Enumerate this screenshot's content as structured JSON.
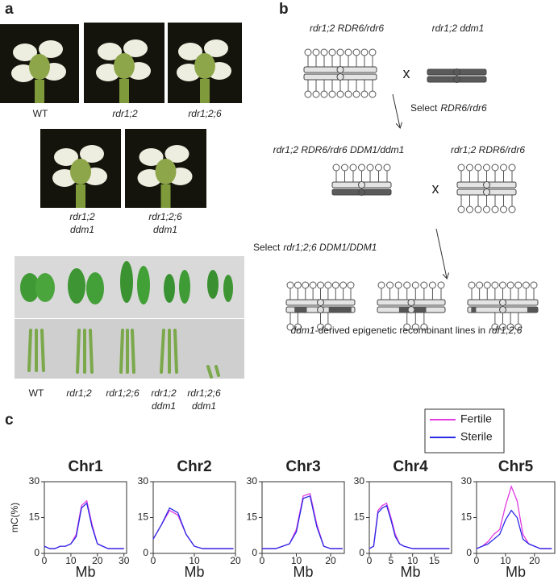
{
  "panel_a": {
    "label": "a",
    "flowers": [
      "WT",
      "rdr1;2",
      "rdr1;2;6"
    ],
    "flowers_ddm1": [
      [
        "rdr1;2",
        "ddm1"
      ],
      [
        "rdr1;2;6",
        "ddm1"
      ]
    ],
    "leaves": [
      [
        "WT"
      ],
      [
        "rdr1;2"
      ],
      [
        "rdr1;2;6"
      ],
      [
        "rdr1;2",
        "ddm1"
      ],
      [
        "rdr1;2;6",
        "ddm1"
      ]
    ]
  },
  "panel_b": {
    "label": "b",
    "parents1": [
      "rdr1;2 RDR6/rdr6",
      "rdr1;2 ddm1"
    ],
    "cross": "x",
    "select1": [
      "Select",
      "RDR6/rdr6"
    ],
    "parents2": [
      "rdr1;2 RDR6/rdr6 DDM1/ddm1",
      "rdr1;2 RDR6/rdr6"
    ],
    "select2": [
      "Select",
      "rdr1;2;6 DDM1/DDM1"
    ],
    "caption": [
      "ddm1",
      "-derived epigenetic recombinant lines in",
      "rdr1;2;6"
    ]
  },
  "panel_c": {
    "label": "c"
  },
  "chart_data": [
    {
      "type": "line",
      "title": "Chr1",
      "y_label": "mC(%)",
      "x_label": "Mb",
      "xlim": [
        0,
        31
      ],
      "xticks": [
        0,
        10,
        20,
        30
      ],
      "ylim": [
        0,
        30
      ],
      "yticks": [
        0,
        15,
        30
      ],
      "x": [
        0,
        2,
        4,
        6,
        8,
        10,
        12,
        14,
        16,
        18,
        20,
        22,
        24,
        26,
        28,
        30
      ],
      "series": [
        {
          "name": "Fertile",
          "color": "#e23be2",
          "values": [
            3,
            2,
            2,
            3,
            3,
            4,
            8,
            20,
            22,
            12,
            4,
            3,
            2,
            2,
            2,
            2
          ]
        },
        {
          "name": "Sterile",
          "color": "#2a2ae6",
          "values": [
            3,
            2,
            2,
            3,
            3,
            4,
            7,
            19,
            21,
            11,
            4,
            3,
            2,
            2,
            2,
            2
          ]
        }
      ]
    },
    {
      "type": "line",
      "title": "Chr2",
      "x_label": "Mb",
      "xlim": [
        0,
        20
      ],
      "xticks": [
        0,
        10,
        20
      ],
      "ylim": [
        0,
        30
      ],
      "yticks": [
        0,
        15,
        30
      ],
      "x": [
        0,
        2,
        4,
        6,
        8,
        10,
        12,
        14,
        16,
        18,
        19.5
      ],
      "series": [
        {
          "color": "#e23be2",
          "values": [
            6,
            12,
            18,
            16,
            8,
            3,
            2,
            2,
            2,
            2,
            2
          ]
        },
        {
          "color": "#2a2ae6",
          "values": [
            6,
            12,
            19,
            17,
            8,
            3,
            2,
            2,
            2,
            2,
            2
          ]
        }
      ]
    },
    {
      "type": "line",
      "title": "Chr3",
      "x_label": "Mb",
      "xlim": [
        0,
        24
      ],
      "xticks": [
        0,
        10,
        20
      ],
      "ylim": [
        0,
        30
      ],
      "yticks": [
        0,
        15,
        30
      ],
      "x": [
        0,
        2,
        4,
        6,
        8,
        10,
        12,
        14,
        16,
        18,
        20,
        22,
        23.5
      ],
      "series": [
        {
          "color": "#e23be2",
          "values": [
            2,
            2,
            2,
            3,
            4,
            10,
            24,
            25,
            12,
            3,
            2,
            2,
            2
          ]
        },
        {
          "color": "#2a2ae6",
          "values": [
            2,
            2,
            2,
            3,
            4,
            9,
            23,
            24,
            11,
            3,
            2,
            2,
            2
          ]
        }
      ]
    },
    {
      "type": "line",
      "title": "Chr4",
      "x_label": "Mb",
      "xlim": [
        0,
        19
      ],
      "xticks": [
        0,
        5,
        10,
        15
      ],
      "ylim": [
        0,
        30
      ],
      "yticks": [
        0,
        15,
        30
      ],
      "x": [
        0,
        1,
        2,
        3,
        4,
        5,
        6,
        7,
        8,
        10,
        12,
        14,
        16,
        18.5
      ],
      "series": [
        {
          "color": "#e23be2",
          "values": [
            2,
            3,
            18,
            20,
            21,
            15,
            8,
            4,
            3,
            2,
            2,
            2,
            2,
            2
          ]
        },
        {
          "color": "#2a2ae6",
          "values": [
            2,
            3,
            17,
            19,
            20,
            14,
            7,
            4,
            3,
            2,
            2,
            2,
            2,
            2
          ]
        }
      ]
    },
    {
      "type": "line",
      "title": "Chr5",
      "x_label": "Mb",
      "xlim": [
        0,
        27
      ],
      "xticks": [
        0,
        10,
        20
      ],
      "ylim": [
        0,
        30
      ],
      "yticks": [
        0,
        15,
        30
      ],
      "x": [
        0,
        2,
        4,
        6,
        8,
        10,
        12,
        14,
        16,
        18,
        20,
        22,
        24,
        26
      ],
      "series": [
        {
          "color": "#e23be2",
          "values": [
            2,
            3,
            5,
            8,
            10,
            20,
            28,
            22,
            8,
            4,
            3,
            2,
            2,
            2
          ]
        },
        {
          "color": "#2a2ae6",
          "values": [
            2,
            3,
            4,
            6,
            8,
            14,
            18,
            15,
            6,
            4,
            3,
            2,
            2,
            2
          ]
        }
      ]
    }
  ]
}
